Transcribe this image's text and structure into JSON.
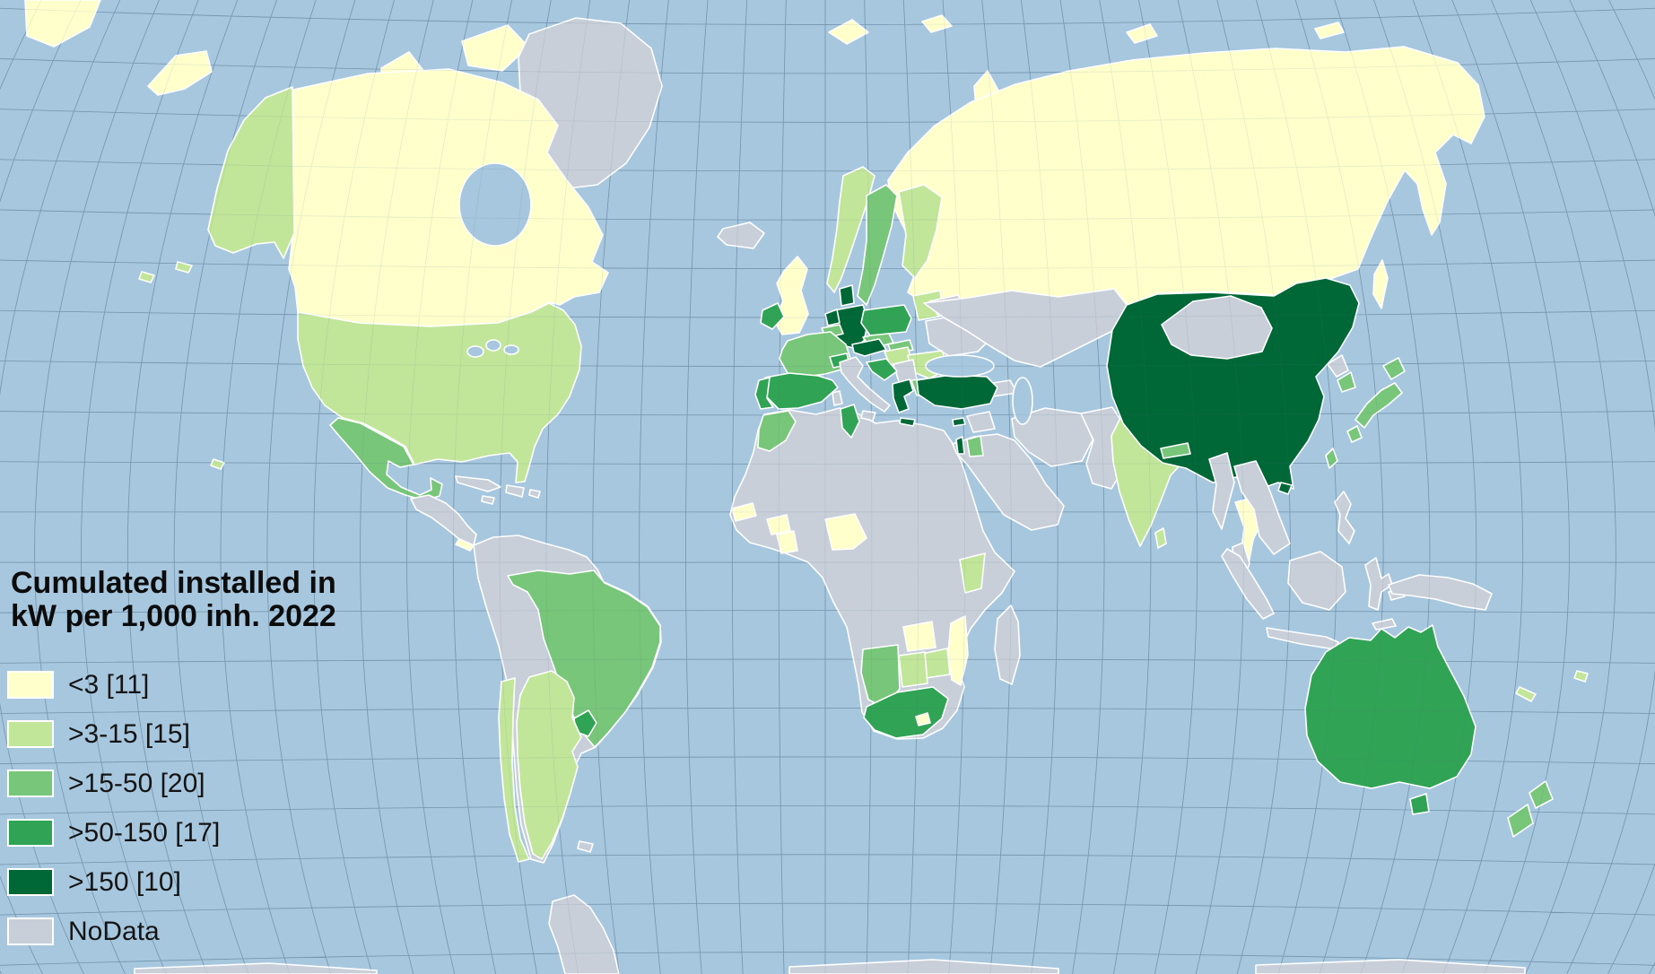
{
  "title": {
    "line1": "Cumulated installed in",
    "line2": "kW per 1,000 inh. 2022"
  },
  "legend": {
    "items": [
      {
        "label": "<3 [11]",
        "category": "lt3"
      },
      {
        "label": ">3-15 [15]",
        "category": "3-15"
      },
      {
        "label": ">15-50 [20]",
        "category": "15-50"
      },
      {
        "label": ">50-150 [17]",
        "category": "50-150"
      },
      {
        "label": ">150 [10]",
        "category": "gt150"
      },
      {
        "label": "NoData",
        "category": "nodata"
      }
    ],
    "colors_by_category": {
      "lt3": "#FFFFCC",
      "3-15": "#C2E699",
      "15-50": "#78C679",
      "50-150": "#31A354",
      "gt150": "#006837",
      "nodata": "#C8CFD8"
    }
  },
  "map": {
    "ocean_color": "#A7C7DE",
    "graticule_color": "#51708C",
    "border_color": "#FFFFFF",
    "regions": {
      "chukotka-corner": "lt3",
      "st-lawrence-island": "lt3",
      "greenland": "nodata",
      "ellesmere-island": "lt3",
      "victoria-island": "lt3",
      "banks-island": "lt3",
      "baffin-island": "lt3",
      "canada": "lt3",
      "alaska": "3-15",
      "usa": "3-15",
      "hawaii": "3-15",
      "mexico": "15-50",
      "central-america": "nodata",
      "panama": "lt3",
      "cuba": "nodata",
      "hispaniola": "nodata",
      "jamaica": "nodata",
      "puerto-rico": "nodata",
      "south-america-other": "nodata",
      "brazil": "15-50",
      "uruguay": "50-150",
      "argentina": "3-15",
      "chile": "3-15",
      "falkland-islands": "nodata",
      "antarctica": "nodata",
      "iceland": "nodata",
      "ireland": "50-150",
      "united-kingdom": "lt3",
      "norway": "3-15",
      "sweden": "15-50",
      "finland": "3-15",
      "denmark": "gt150",
      "baltic-states": "3-15",
      "netherlands": "gt150",
      "belgium": "15-50",
      "germany": "gt150",
      "france": "15-50",
      "spain": "50-150",
      "portugal": "50-150",
      "switzerland": "50-150",
      "austria": "gt150",
      "czechia": "15-50",
      "slovakia": "15-50",
      "poland": "50-150",
      "hungary": "3-15",
      "slovenia-croatia": "50-150",
      "serbia-balkans": "nodata",
      "albania": "50-150",
      "romania": "3-15",
      "bulgaria": "15-50",
      "greece": "gt150",
      "belarus": "nodata",
      "ukraine": "nodata",
      "svalbard": "lt3",
      "franz-josef-land": "lt3",
      "novaya-zemlya": "lt3",
      "severnaya-zemlya": "lt3",
      "new-siberian-islands": "lt3",
      "wrangel-island": "lt3",
      "russia": "lt3",
      "sakhalin": "lt3",
      "turkey": "gt150",
      "cyprus": "gt150",
      "syria": "nodata",
      "israel": "gt150",
      "jordan": "15-50",
      "middle-east": "nodata",
      "iran": "nodata",
      "caucasus": "nodata",
      "kazakhstan-central-asia": "nodata",
      "afghanistan-pakistan": "nodata",
      "india": "3-15",
      "nepal": "15-50",
      "sri-lanka": "3-15",
      "china": "gt150",
      "hainan": "gt150",
      "mongolia": "nodata",
      "north-korea": "nodata",
      "south-korea": "15-50",
      "japan": "15-50",
      "taiwan": "15-50",
      "myanmar": "nodata",
      "thailand": "lt3",
      "indochina": "nodata",
      "malaysia": "nodata",
      "sumatra": "nodata",
      "java": "nodata",
      "borneo": "nodata",
      "sulawesi": "nodata",
      "timor": "nodata",
      "philippines": "nodata",
      "new-guinea": "nodata",
      "australia": "50-150",
      "tasmania": "50-150",
      "new-zealand": "15-50",
      "new-caledonia": "3-15",
      "fiji": "3-15",
      "morocco": "15-50",
      "tunisia": "50-150",
      "africa-other": "nodata",
      "senegal": "lt3",
      "burkina-faso": "lt3",
      "ghana": "lt3",
      "nigeria": "lt3",
      "kenya": "3-15",
      "zambia": "lt3",
      "zimbabwe": "3-15",
      "mozambique": "lt3",
      "botswana": "3-15",
      "namibia": "15-50",
      "south-africa": "50-150",
      "lesotho": "lt3",
      "madagascar": "nodata"
    }
  },
  "chart_data": {
    "type": "choropleth",
    "title": "Cumulated installed in kW per 1,000 inh. 2022",
    "unit": "kW per 1,000 inhabitants",
    "year": "2022",
    "classes": [
      {
        "range": "<3",
        "country_count": 11,
        "color": "#FFFFCC"
      },
      {
        "range": ">3-15",
        "country_count": 15,
        "color": "#C2E699"
      },
      {
        "range": ">15-50",
        "country_count": 20,
        "color": "#78C679"
      },
      {
        "range": ">50-150",
        "country_count": 17,
        "color": "#31A354"
      },
      {
        "range": ">150",
        "country_count": 10,
        "color": "#006837"
      },
      {
        "range": "NoData",
        "country_count": null,
        "color": "#C8CFD8"
      }
    ],
    "legend_position": "bottom-left",
    "notable_values": {
      "gt150": [
        "China",
        "Turkey",
        "Greece",
        "Germany",
        "Denmark",
        "Austria",
        "Netherlands",
        "Israel",
        "Cyprus"
      ],
      "50-150": [
        "Australia",
        "Spain",
        "Portugal",
        "Italy",
        "Poland",
        "Ireland",
        "Switzerland",
        "Tunisia",
        "South Africa",
        "Uruguay"
      ],
      "15-50": [
        "Mexico",
        "Brazil",
        "France",
        "Sweden",
        "Japan",
        "South Korea",
        "Taiwan",
        "New Zealand",
        "Morocco",
        "Namibia",
        "Jordan",
        "Belgium",
        "Czechia",
        "Slovakia",
        "Bulgaria",
        "Nepal"
      ],
      "3-15": [
        "USA",
        "India",
        "Argentina",
        "Chile",
        "Norway",
        "Finland",
        "Romania",
        "Hungary",
        "Kenya",
        "Zimbabwe",
        "Botswana"
      ],
      "lt3": [
        "Canada",
        "Russia",
        "United Kingdom",
        "Thailand",
        "Senegal",
        "Nigeria",
        "Zambia",
        "Mozambique"
      ],
      "nodata": [
        "Greenland",
        "Most of Africa",
        "Central Asia",
        "Middle East",
        "Indonesia",
        "Mongolia",
        "Ukraine"
      ]
    }
  }
}
